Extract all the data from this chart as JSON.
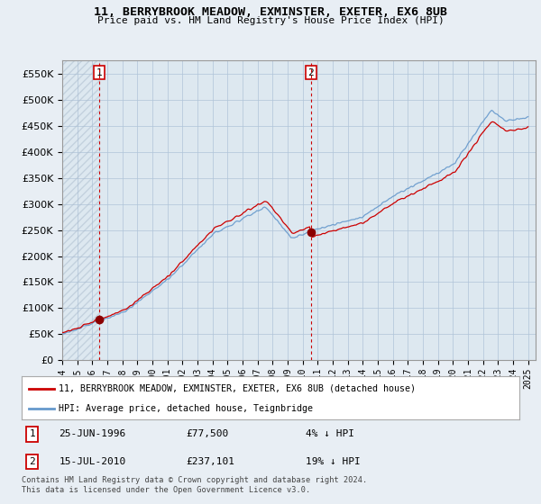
{
  "title": "11, BERRYBROOK MEADOW, EXMINSTER, EXETER, EX6 8UB",
  "subtitle": "Price paid vs. HM Land Registry's House Price Index (HPI)",
  "property_label": "11, BERRYBROOK MEADOW, EXMINSTER, EXETER, EX6 8UB (detached house)",
  "hpi_label": "HPI: Average price, detached house, Teignbridge",
  "transaction1_date": "25-JUN-1996",
  "transaction1_price": "£77,500",
  "transaction1_diff": "4% ↓ HPI",
  "transaction2_date": "15-JUL-2010",
  "transaction2_price": "£237,101",
  "transaction2_diff": "19% ↓ HPI",
  "copyright": "Contains HM Land Registry data © Crown copyright and database right 2024.\nThis data is licensed under the Open Government Licence v3.0.",
  "ylim": [
    0,
    575000
  ],
  "yticks": [
    0,
    50000,
    100000,
    150000,
    200000,
    250000,
    300000,
    350000,
    400000,
    450000,
    500000,
    550000
  ],
  "background_color": "#e8eef4",
  "plot_bg_color": "#dde8f0",
  "grid_color": "#b0c4d8",
  "property_color": "#cc0000",
  "hpi_color": "#6699cc",
  "transaction_vline_color": "#cc0000",
  "marker_color": "#8b0000"
}
